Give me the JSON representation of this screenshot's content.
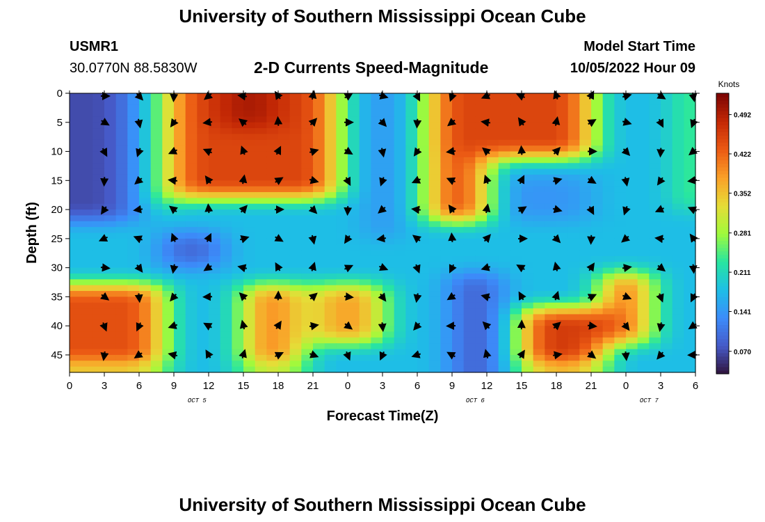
{
  "header": {
    "title": "University of Southern Mississippi Ocean Cube",
    "station": "USMR1",
    "coords": "30.0770N  88.5830W",
    "subtitle": "2-D Currents Speed-Magnitude",
    "model_label": "Model Start Time",
    "model_time": "10/05/2022 Hour 09"
  },
  "footer": {
    "title": "University of Southern Mississippi Ocean Cube"
  },
  "colors": {
    "arrow": "#000000",
    "background": "#ffffff"
  },
  "chart_data": {
    "type": "heatmap",
    "title": "2-D Currents Speed-Magnitude",
    "xlabel": "Forecast Time(Z)",
    "ylabel": "Depth (ft)",
    "x_tick_labels": [
      "0",
      "3",
      "6",
      "9",
      "12",
      "15",
      "18",
      "21",
      "0",
      "3",
      "6",
      "9",
      "12",
      "15",
      "18",
      "21",
      "0",
      "3",
      "6"
    ],
    "x_range": [
      0,
      54
    ],
    "date_labels": [
      {
        "hour": 11,
        "label": "OCT 5"
      },
      {
        "hour": 35,
        "label": "OCT 6"
      },
      {
        "hour": 50,
        "label": "OCT 7"
      }
    ],
    "y_ticks": [
      0,
      5,
      10,
      15,
      20,
      25,
      30,
      35,
      40,
      45
    ],
    "y_range": [
      0,
      48
    ],
    "colorbar": {
      "unit": "Knots",
      "ticks": [
        "0.070",
        "0.141",
        "0.211",
        "0.281",
        "0.352",
        "0.422",
        "0.492"
      ],
      "tick_values": [
        0.07,
        0.141,
        0.211,
        0.281,
        0.352,
        0.422,
        0.492
      ],
      "min": 0.03,
      "max": 0.53
    },
    "arrow_hours": [
      3,
      6,
      9,
      12,
      15,
      18,
      21,
      24,
      27,
      30,
      33,
      36,
      39,
      42,
      45,
      48,
      51,
      54
    ],
    "arrow_depths": [
      0,
      5,
      10,
      15,
      20,
      25,
      30,
      35,
      40,
      45
    ],
    "speed_field_knots": [
      {
        "h0": 0.5,
        "h1": 5,
        "d0": 0,
        "d1": 22,
        "v": 0.07
      },
      {
        "h0": 5,
        "h1": 7,
        "d0": 0,
        "d1": 22,
        "v": 0.14
      },
      {
        "h0": 7,
        "h1": 8.5,
        "d0": 0,
        "d1": 20,
        "v": 0.28
      },
      {
        "h0": 9,
        "h1": 23,
        "d0": 0,
        "d1": 18,
        "v": 0.45
      },
      {
        "h0": 13,
        "h1": 18,
        "d0": 0,
        "d1": 6,
        "v": 0.5
      },
      {
        "h0": 26,
        "h1": 28,
        "d0": 0,
        "d1": 25,
        "v": 0.12
      },
      {
        "h0": 31,
        "h1": 45,
        "d0": 0,
        "d1": 11,
        "v": 0.45
      },
      {
        "h0": 31,
        "h1": 36,
        "d0": 10,
        "d1": 22,
        "v": 0.44
      },
      {
        "h0": 37,
        "h1": 45,
        "d0": 14,
        "d1": 22,
        "v": 0.14
      },
      {
        "h0": 53.5,
        "h1": 54,
        "d0": 0,
        "d1": 20,
        "v": 0.33
      },
      {
        "h0": 8,
        "h1": 13,
        "d0": 24,
        "d1": 30,
        "v": 0.09
      },
      {
        "h0": 0.5,
        "h1": 8,
        "d0": 33,
        "d1": 47,
        "v": 0.44
      },
      {
        "h0": 15,
        "h1": 20,
        "d0": 33,
        "d1": 47,
        "v": 0.4
      },
      {
        "h0": 21,
        "h1": 27,
        "d0": 33,
        "d1": 43,
        "v": 0.38
      },
      {
        "h0": 33,
        "h1": 37,
        "d0": 31,
        "d1": 48,
        "v": 0.08
      },
      {
        "h0": 39,
        "h1": 46,
        "d0": 37,
        "d1": 47,
        "v": 0.46
      },
      {
        "h0": 46,
        "h1": 50,
        "d0": 31,
        "d1": 43,
        "v": 0.42
      }
    ],
    "background_speed_knots": 0.18
  }
}
